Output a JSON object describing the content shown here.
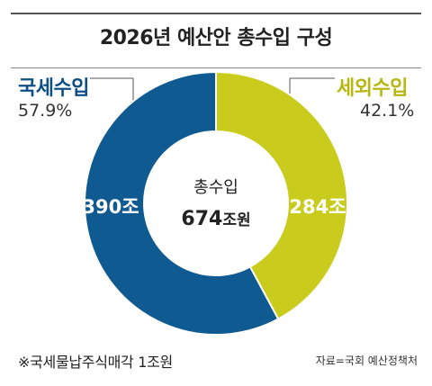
{
  "title": "2026년 예산안 총수입 구성",
  "center": {
    "label": "총수입",
    "value": "674",
    "unit": "조원"
  },
  "chart_data": {
    "type": "pie",
    "title": "2026년 예산안 총수입 구성",
    "total": 674,
    "total_unit": "조원",
    "series": [
      {
        "name": "국세수입",
        "value": 390,
        "value_label": "390조",
        "percent": 57.9,
        "percent_label": "57.9%",
        "color": "#0e5a91"
      },
      {
        "name": "세외수입",
        "value": 284,
        "value_label": "284조",
        "percent": 42.1,
        "percent_label": "42.1%",
        "color": "#c9cc1c"
      }
    ]
  },
  "note": "※국세물납주식매각 1조원",
  "source": "자료=국회 예산정책처",
  "colors": {
    "accent_blue": "#0e5a91",
    "accent_yellow": "#c9cc1c",
    "text": "#222222"
  }
}
